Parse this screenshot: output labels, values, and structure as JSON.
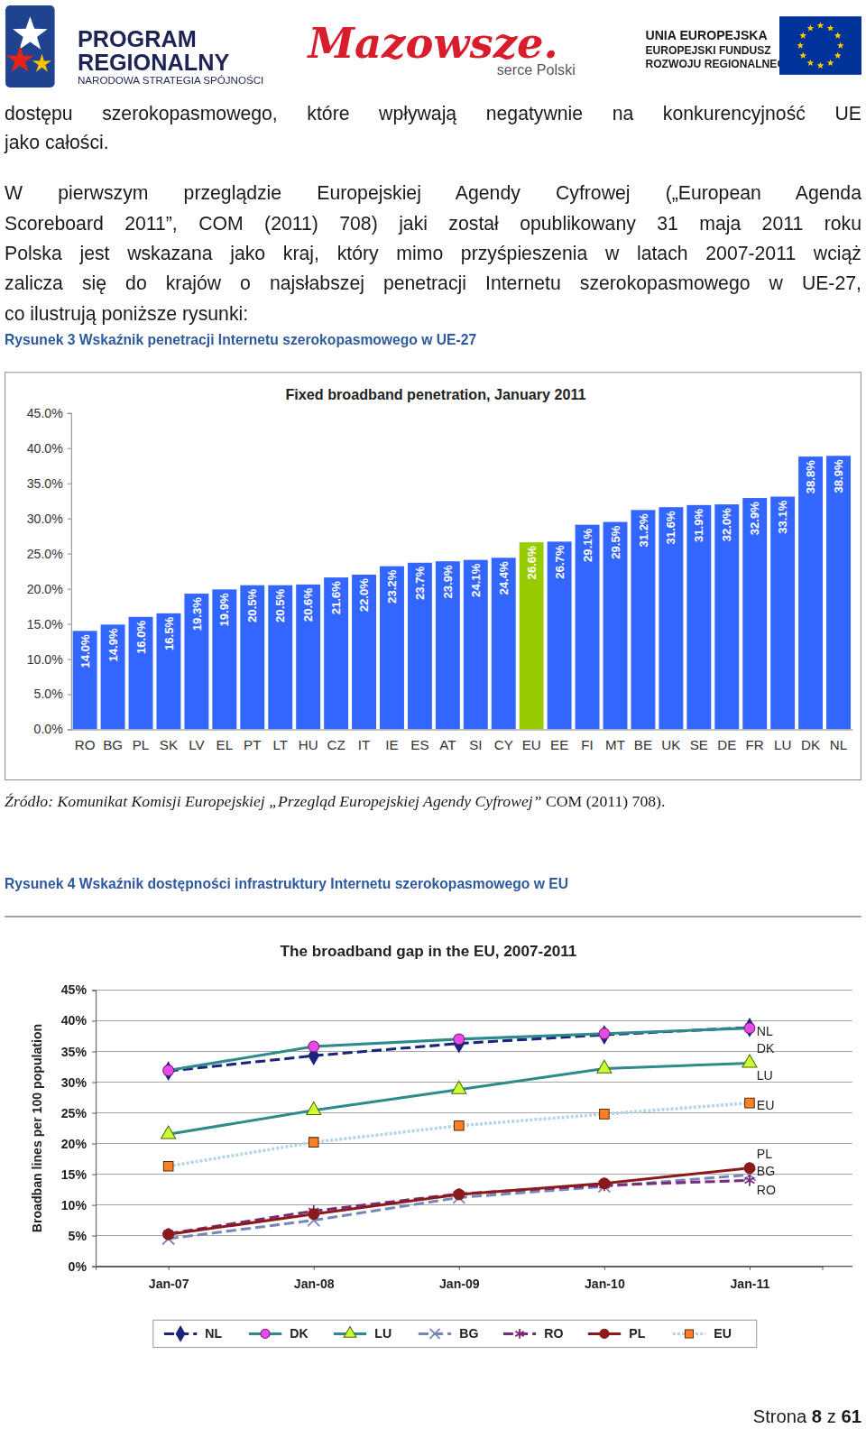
{
  "header": {
    "program": [
      "PROGRAM",
      "REGIONALNY"
    ],
    "program_sub": "NARODOWA STRATEGIA SPÓJNOŚCI",
    "region": "Mazowsze.",
    "region_sub": "serce Polski",
    "eu": [
      "UNIA EUROPEJSKA",
      "EUROPEJSKI FUNDUSZ",
      "ROZWOJU REGIONALNEGO"
    ]
  },
  "paragraphs": [
    [
      "dostępu szerokopasmowego, które wpływają negatywnie na konkurencyjność UE",
      "jako całości."
    ],
    [
      "W pierwszym przeglądzie Europejskiej Agendy Cyfrowej („European Agenda",
      "Scoreboard 2011”, COM (2011) 708) jaki został opublikowany 31 maja 2011 roku",
      "Polska jest wskazana jako kraj, który mimo przyśpieszenia w latach 2007-2011 wciąż",
      "zalicza się do krajów o najsłabszej penetracji Internetu szerokopasmowego w UE-27,",
      "co ilustrują poniższe rysunki:"
    ]
  ],
  "captions": [
    "Rysunek 3 Wskaźnik penetracji Internetu szerokopasmowego w UE-27",
    "Rysunek 4 Wskaźnik dostępności infrastruktury Internetu szerokopasmowego w EU"
  ],
  "source": {
    "italic": "Źródło: Komunikat Komisji Europejskiej „Przegląd Europejskiej Agendy Cyfrowej”",
    "plain": "COM (2011) 708)."
  },
  "footer": {
    "label": "Strona",
    "page": 8,
    "of": "z",
    "total": 61
  },
  "chart_data": [
    {
      "type": "bar",
      "title": "Fixed broadband penetration, January 2011",
      "categories": [
        "RO",
        "BG",
        "PL",
        "SK",
        "LV",
        "EL",
        "PT",
        "LT",
        "HU",
        "CZ",
        "IT",
        "IE",
        "ES",
        "AT",
        "SI",
        "CY",
        "EU",
        "EE",
        "FI",
        "MT",
        "BE",
        "UK",
        "SE",
        "DE",
        "FR",
        "LU",
        "DK",
        "NL"
      ],
      "values": [
        14.0,
        14.9,
        16.0,
        16.5,
        19.3,
        19.9,
        20.5,
        20.5,
        20.6,
        21.6,
        22.0,
        23.2,
        23.7,
        23.9,
        24.1,
        24.4,
        26.6,
        26.7,
        29.1,
        29.5,
        31.2,
        31.6,
        31.9,
        32.0,
        32.9,
        33.1,
        38.8,
        38.9
      ],
      "value_labels": [
        "14.0%",
        "14.9%",
        "16.0%",
        "16.5%",
        "19.3%",
        "19.9%",
        "20.5%",
        "20.5%",
        "20.6%",
        "21.6%",
        "22.0%",
        "23.2%",
        "23.7%",
        "23.9%",
        "24.1%",
        "24.4%",
        "26.6%",
        "26.7%",
        "29.1%",
        "29.5%",
        "31.2%",
        "31.6%",
        "31.9%",
        "32.0%",
        "32.9%",
        "33.1%",
        "38.8%",
        "38.9%"
      ],
      "colors": [
        "#3366ff",
        "#3366ff",
        "#3366ff",
        "#3366ff",
        "#3366ff",
        "#3366ff",
        "#3366ff",
        "#3366ff",
        "#3366ff",
        "#3366ff",
        "#3366ff",
        "#3366ff",
        "#3366ff",
        "#3366ff",
        "#3366ff",
        "#3366ff",
        "#99cc00",
        "#3366ff",
        "#3366ff",
        "#3366ff",
        "#3366ff",
        "#3366ff",
        "#3366ff",
        "#3366ff",
        "#3366ff",
        "#3366ff",
        "#3366ff",
        "#3366ff"
      ],
      "ylim": [
        0,
        45
      ],
      "yticks": [
        {
          "value": 0,
          "label": "0.0%"
        },
        {
          "value": 5,
          "label": "5.0%"
        },
        {
          "value": 10,
          "label": "10.0%"
        },
        {
          "value": 15,
          "label": "15.0%"
        },
        {
          "value": 20,
          "label": "20.0%"
        },
        {
          "value": 25,
          "label": "25.0%"
        },
        {
          "value": 30,
          "label": "30.0%"
        },
        {
          "value": 35,
          "label": "35.0%"
        },
        {
          "value": 40,
          "label": "40.0%"
        },
        {
          "value": 45,
          "label": "45.0%"
        }
      ],
      "grid": false,
      "data_labels": true
    },
    {
      "type": "line",
      "title": "The broadband gap in the EU, 2007-2011",
      "y_label": "Broadban lines per 100 population",
      "categories": [
        "Jan-07",
        "Jan-08",
        "Jan-09",
        "Jan-10",
        "Jan-11"
      ],
      "series": [
        {
          "name": "NL",
          "color": "#1a237e",
          "marker": "diamond",
          "line_style": "dashed",
          "values": [
            31.8,
            34.3,
            36.3,
            37.7,
            38.9
          ]
        },
        {
          "name": "DK",
          "color": "#2e8b8b",
          "marker": "circle",
          "line_style": "solid",
          "values": [
            31.9,
            35.8,
            37.0,
            37.9,
            38.8
          ]
        },
        {
          "name": "LU",
          "color": "#2e8b8b",
          "marker": "triangle",
          "line_style": "solid",
          "values": [
            21.5,
            25.4,
            28.8,
            32.2,
            33.1
          ]
        },
        {
          "name": "BG",
          "color": "#7a86b8",
          "marker": "x",
          "line_style": "dashed",
          "values": [
            4.5,
            7.5,
            11.2,
            13.0,
            14.9
          ]
        },
        {
          "name": "RO",
          "color": "#7b2a7b",
          "marker": "asterisk",
          "line_style": "dashed",
          "values": [
            5.3,
            9.0,
            11.8,
            13.2,
            14.0
          ]
        },
        {
          "name": "PL",
          "color": "#8b1a1a",
          "marker": "circle",
          "line_style": "solid",
          "values": [
            5.2,
            8.5,
            11.7,
            13.5,
            16.0
          ]
        },
        {
          "name": "EU",
          "color": "#b4d6e4",
          "marker": "square",
          "line_style": "dotted",
          "values": [
            16.3,
            20.2,
            22.9,
            24.8,
            26.6
          ]
        }
      ],
      "ylim": [
        0,
        45
      ],
      "yticks": [
        {
          "value": 0,
          "label": "0%"
        },
        {
          "value": 5,
          "label": "5%"
        },
        {
          "value": 10,
          "label": "10%"
        },
        {
          "value": 15,
          "label": "15%"
        },
        {
          "value": 20,
          "label": "20%"
        },
        {
          "value": 25,
          "label": "25%"
        },
        {
          "value": 30,
          "label": "30%"
        },
        {
          "value": 35,
          "label": "35%"
        },
        {
          "value": 40,
          "label": "40%"
        },
        {
          "value": 45,
          "label": "45%"
        }
      ],
      "grid": true,
      "legend": "bottom",
      "annotations": [
        "NL",
        "DK",
        "LU",
        "EU",
        "PL",
        "BG",
        "RO"
      ]
    }
  ]
}
